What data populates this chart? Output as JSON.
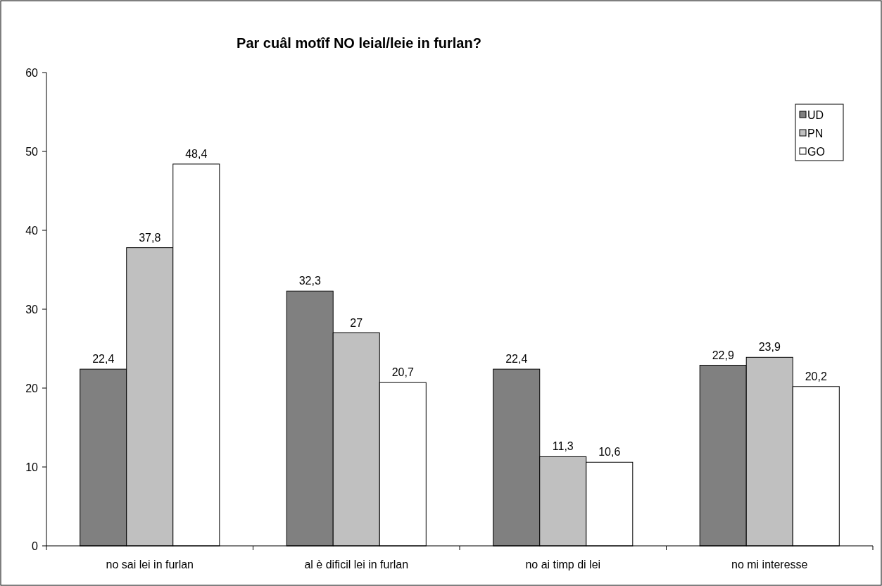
{
  "chart_data": {
    "type": "bar",
    "title": "Par cuâl motîf NO leial/leie in furlan?",
    "categories": [
      "no sai lei in furlan",
      "al è dificil lei in furlan",
      "no ai timp di lei",
      "no mi interesse"
    ],
    "series": [
      {
        "name": "UD",
        "color": "#808080",
        "values": [
          22.4,
          32.3,
          22.4,
          22.9
        ],
        "value_labels": [
          "22,4",
          "32,3",
          "22,4",
          "22,9"
        ]
      },
      {
        "name": "PN",
        "color": "#c0c0c0",
        "values": [
          37.8,
          27,
          11.3,
          23.9
        ],
        "value_labels": [
          "37,8",
          "27",
          "11,3",
          "23,9"
        ]
      },
      {
        "name": "GO",
        "color": "#ffffff",
        "values": [
          48.4,
          20.7,
          10.6,
          20.2
        ],
        "value_labels": [
          "48,4",
          "20,7",
          "10,6",
          "20,2"
        ]
      }
    ],
    "ylim": [
      0,
      60
    ],
    "yticks": [
      0,
      10,
      20,
      30,
      40,
      50,
      60
    ],
    "grid": false,
    "legend": "top right"
  }
}
